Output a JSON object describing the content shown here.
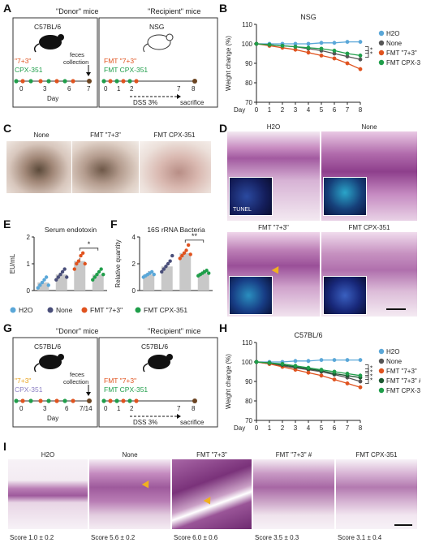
{
  "panels": {
    "A": {
      "letter": "A",
      "donor_title": "\"Donor\" mice",
      "recipient_title": "\"Recipient\" mice",
      "donor_strain": "C57BL/6",
      "recipient_strain": "NSG",
      "donor_group1": "\"7+3\"",
      "donor_group2": "CPX-351",
      "recipient_group1": "FMT \"7+3\"",
      "recipient_group2": "FMT CPX-351",
      "feces": "feces",
      "collection": "collection",
      "donor_ticks": [
        "0",
        "3",
        "6",
        "7"
      ],
      "day_label": "Day",
      "recipient_ticks": [
        "0",
        "1",
        "2",
        "7",
        "8"
      ],
      "dss": "DSS 3%",
      "sacrifice": "sacrifice"
    },
    "B": {
      "letter": "B"
    },
    "C": {
      "letter": "C",
      "labels": [
        "None",
        "FMT \"7+3\"",
        "FMT CPX-351"
      ]
    },
    "D": {
      "letter": "D",
      "labels": [
        "H2O",
        "None",
        "FMT \"7+3\"",
        "FMT CPX-351"
      ],
      "tunel": "TUNEL"
    },
    "E": {
      "letter": "E"
    },
    "F": {
      "letter": "F"
    },
    "legend_EF": {
      "items": [
        {
          "label": "H2O",
          "color": "#5aa7d8"
        },
        {
          "label": "None",
          "color": "#4a4f7a"
        },
        {
          "label": "FMT \"7+3\"",
          "color": "#e0531f"
        },
        {
          "label": "FMT CPX-351",
          "color": "#1f9e4a"
        }
      ]
    },
    "G": {
      "letter": "G",
      "donor_title": "\"Donor\" mice",
      "recipient_title": "\"Recipient\" mice",
      "donor_strain": "C57BL/6",
      "recipient_strain": "C57BL/6",
      "donor_group1": "\"7+3\"",
      "donor_group2": "CPX-351",
      "recipient_group1": "FMT \"7+3\"",
      "recipient_group2": "FMT CPX-351",
      "feces": "feces",
      "collection": "collection",
      "donor_ticks": [
        "0",
        "3",
        "6",
        "7/14"
      ],
      "day_label": "Day",
      "recipient_ticks": [
        "0",
        "1",
        "2",
        "7",
        "8"
      ],
      "dss": "DSS 3%",
      "sacrifice": "sacrifice"
    },
    "H": {
      "letter": "H"
    },
    "I": {
      "letter": "I",
      "labels": [
        "H2O",
        "None",
        "FMT \"7+3\"",
        "FMT \"7+3\" #",
        "FMT CPX-351"
      ],
      "scores": [
        "Score 1.0 ± 0.2",
        "Score 5.6 ± 0.2",
        "Score 6.0 ± 0.6",
        "Score 3.5 ± 0.3",
        "Score 3.1 ± 0.4"
      ]
    }
  },
  "chart_data": [
    {
      "id": "B",
      "type": "line",
      "title": "NSG",
      "xlabel": "Day",
      "ylabel": "Weight change (%)",
      "x": [
        0,
        1,
        2,
        3,
        4,
        5,
        6,
        7,
        8
      ],
      "ylim": [
        70,
        110
      ],
      "yticks": [
        70,
        80,
        90,
        100,
        110
      ],
      "series": [
        {
          "name": "H2O",
          "color": "#5aa7d8",
          "values": [
            100,
            100,
            100,
            100,
            100,
            100.5,
            100.5,
            101,
            101
          ]
        },
        {
          "name": "None",
          "color": "#555555",
          "values": [
            100,
            99.5,
            99,
            98.5,
            97.5,
            96.5,
            95,
            93.5,
            92
          ]
        },
        {
          "name": "FMT \"7+3\"",
          "color": "#e0531f",
          "values": [
            100,
            99,
            98,
            97,
            95.5,
            94,
            92.5,
            90,
            87
          ]
        },
        {
          "name": "FMT CPX-351",
          "color": "#1f9e4a",
          "values": [
            100,
            99.5,
            99,
            98.5,
            98,
            97.5,
            96.5,
            95,
            94
          ]
        }
      ],
      "annotations": [
        "*",
        "*"
      ]
    },
    {
      "id": "E",
      "type": "bar",
      "title": "Serum endotoxin",
      "ylabel": "EU/mL",
      "ylim": [
        0,
        2
      ],
      "yticks": [
        0,
        1,
        2
      ],
      "categories": [
        "H2O",
        "None",
        "FMT \"7+3\"",
        "FMT CPX-351"
      ],
      "colors": [
        "#5aa7d8",
        "#4a4f7a",
        "#e0531f",
        "#1f9e4a"
      ],
      "values": [
        0.3,
        0.6,
        1.1,
        0.6
      ],
      "points": [
        [
          0.1,
          0.2,
          0.3,
          0.4,
          0.5,
          0.2
        ],
        [
          0.4,
          0.5,
          0.6,
          0.7,
          0.8,
          0.5
        ],
        [
          0.8,
          1.0,
          1.1,
          1.3,
          1.4,
          1.0
        ],
        [
          0.4,
          0.5,
          0.6,
          0.7,
          0.8,
          0.6
        ]
      ],
      "annotations": [
        "*"
      ]
    },
    {
      "id": "F",
      "type": "bar",
      "title": "16S rRNA Bacteria",
      "ylabel": "Relative quantity",
      "ylim": [
        0,
        4
      ],
      "yticks": [
        0,
        2,
        4
      ],
      "categories": [
        "H2O",
        "None",
        "FMT \"7+3\"",
        "FMT CPX-351"
      ],
      "colors": [
        "#5aa7d8",
        "#4a4f7a",
        "#e0531f",
        "#1f9e4a"
      ],
      "values": [
        1.2,
        1.8,
        2.8,
        1.3
      ],
      "points": [
        [
          1.0,
          1.1,
          1.2,
          1.3,
          1.4,
          1.2
        ],
        [
          1.4,
          1.6,
          1.8,
          2.0,
          2.2,
          2.6
        ],
        [
          2.4,
          2.6,
          2.8,
          3.0,
          3.4,
          2.7
        ],
        [
          1.1,
          1.2,
          1.3,
          1.4,
          1.5,
          1.3
        ]
      ],
      "annotations": [
        "**"
      ]
    },
    {
      "id": "H",
      "type": "line",
      "title": "C57BL/6",
      "xlabel": "Day",
      "ylabel": "Weight change (%)",
      "x": [
        0,
        1,
        2,
        3,
        4,
        5,
        6,
        7,
        8
      ],
      "ylim": [
        70,
        110
      ],
      "yticks": [
        70,
        80,
        90,
        100,
        110
      ],
      "series": [
        {
          "name": "H2O",
          "color": "#5aa7d8",
          "values": [
            100,
            100,
            100,
            100.5,
            100.5,
            101,
            101,
            101,
            101
          ]
        },
        {
          "name": "None",
          "color": "#555555",
          "values": [
            100,
            99,
            98,
            97,
            96,
            95,
            93.5,
            92,
            90
          ]
        },
        {
          "name": "FMT \"7+3\"",
          "color": "#e0531f",
          "values": [
            100,
            99,
            97.5,
            96,
            94.5,
            93,
            91,
            89,
            87
          ]
        },
        {
          "name": "FMT \"7+3\" #",
          "color": "#1d5a33",
          "values": [
            100,
            99.5,
            98.5,
            97.5,
            96.5,
            95.5,
            94,
            93,
            92
          ]
        },
        {
          "name": "FMT CPX-351",
          "color": "#1f9e4a",
          "values": [
            100,
            99.5,
            99,
            98,
            97,
            96,
            95,
            94,
            93
          ]
        }
      ],
      "annotations": [
        "*",
        "*",
        "*",
        "*"
      ]
    }
  ]
}
